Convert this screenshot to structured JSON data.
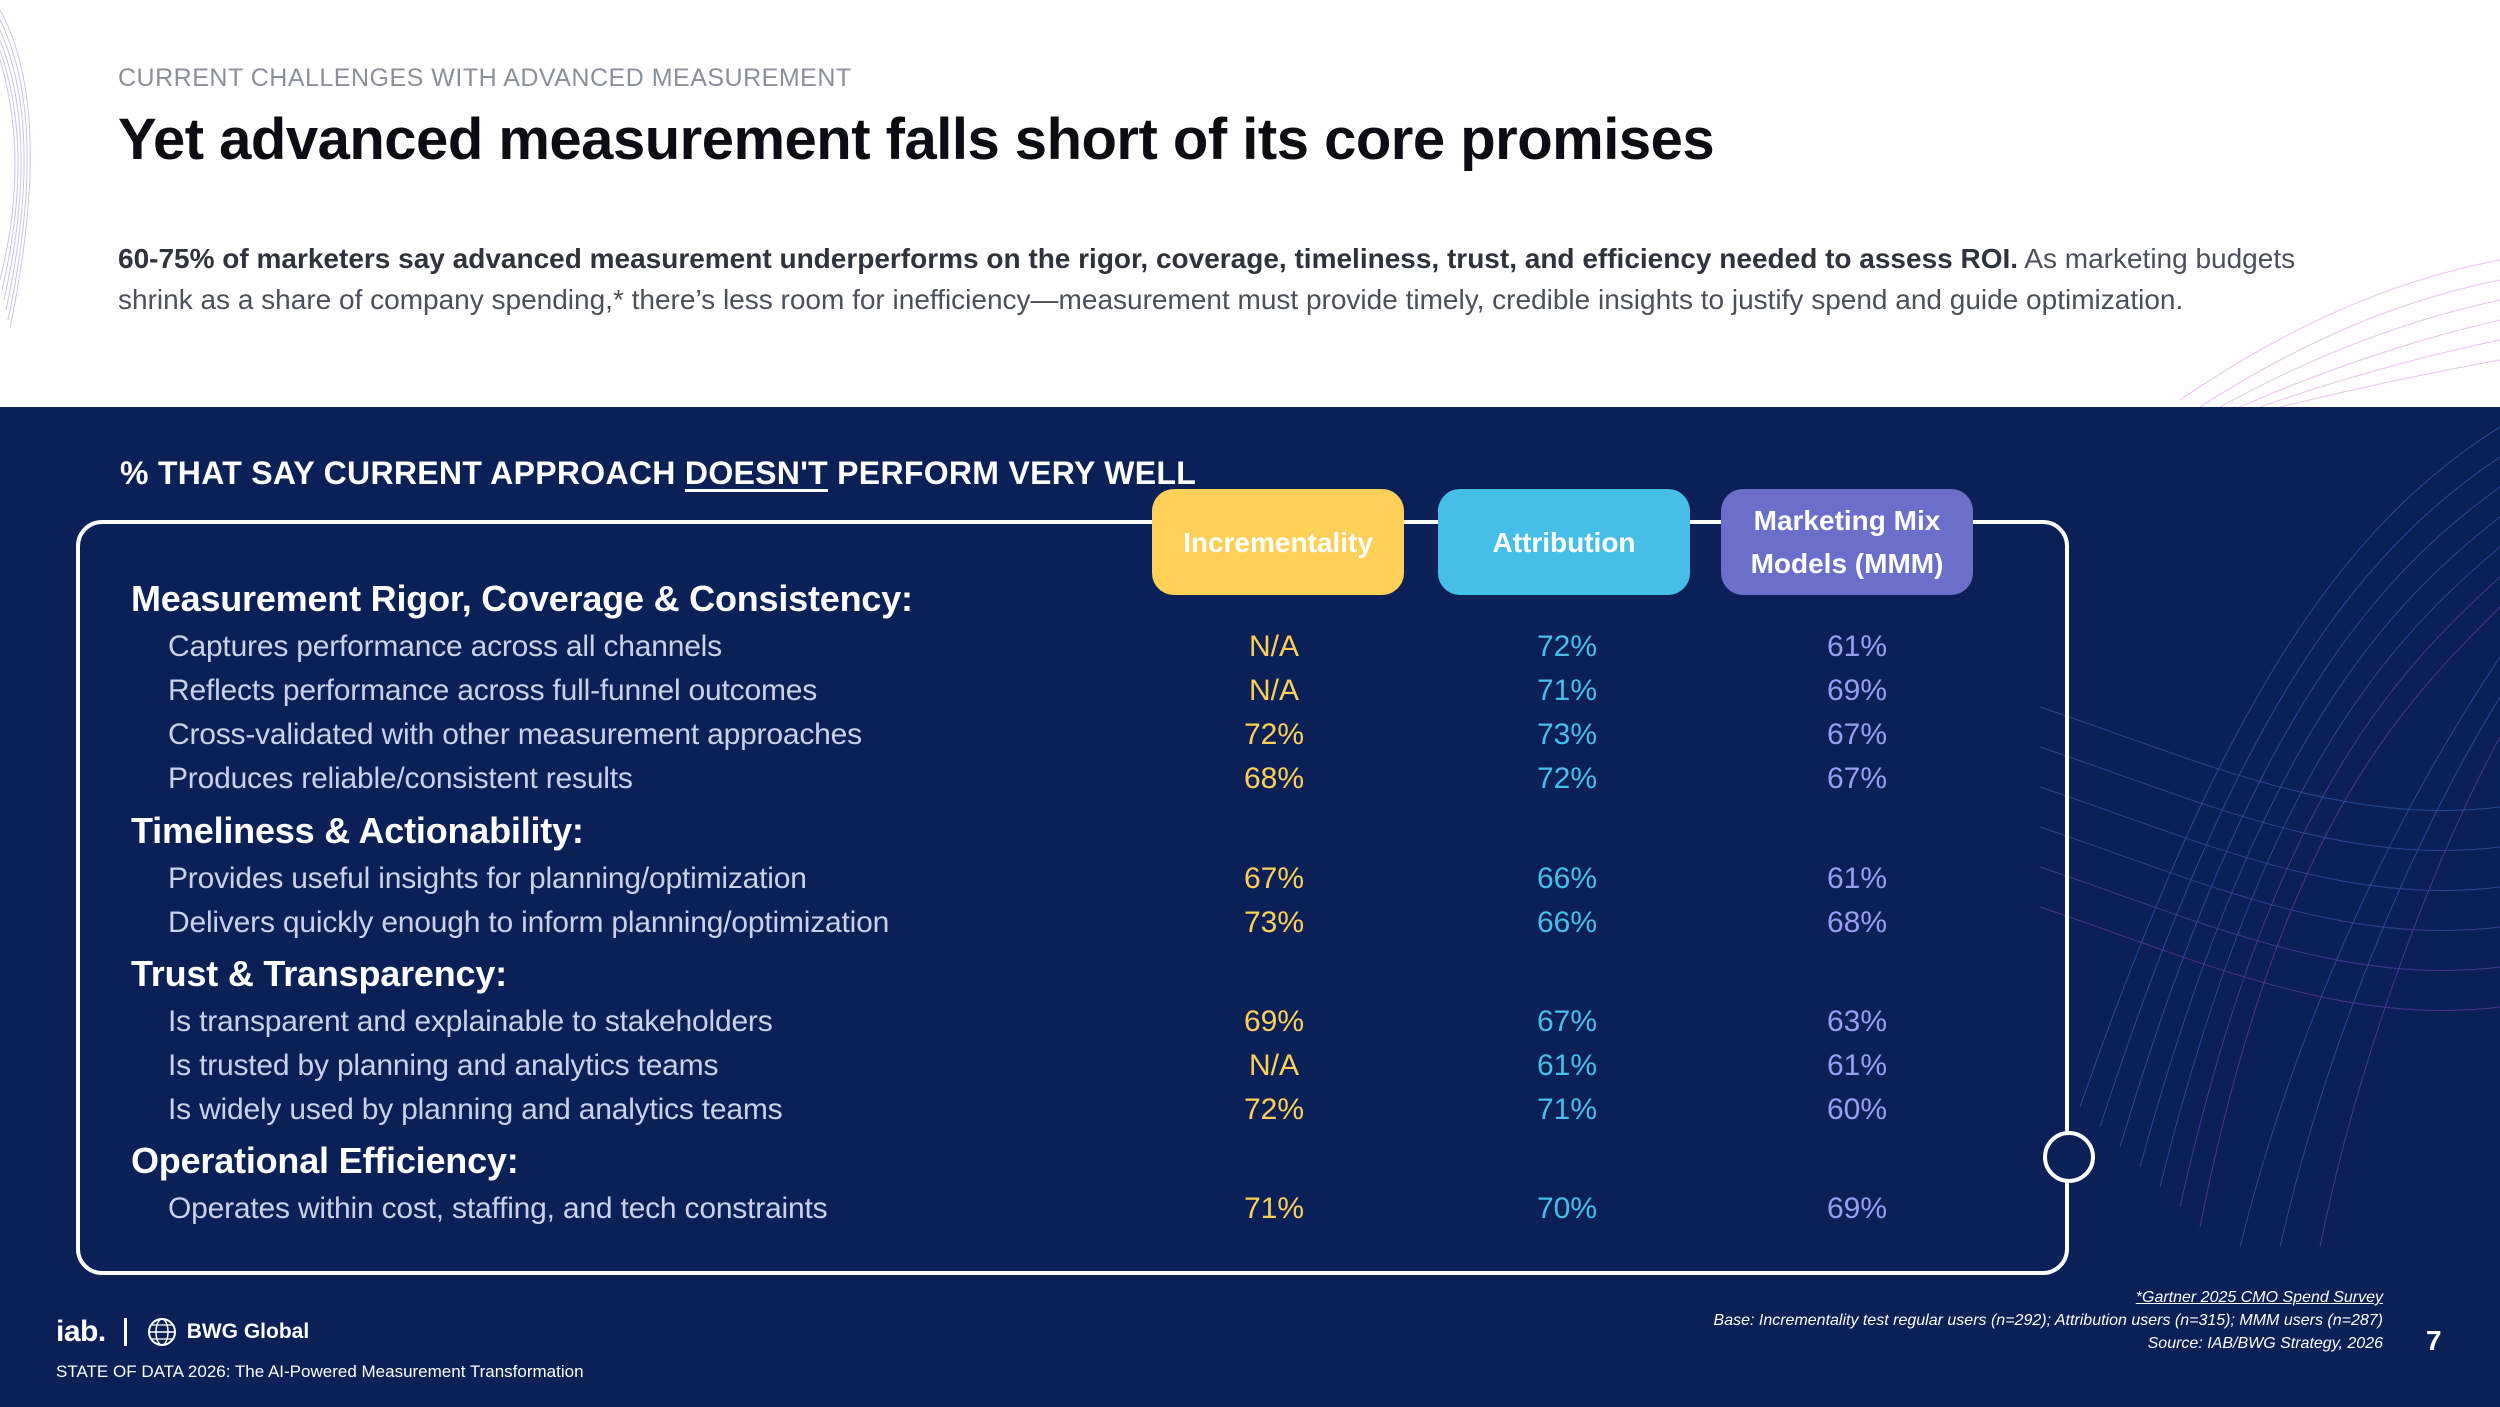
{
  "header": {
    "eyebrow": "CURRENT CHALLENGES WITH ADVANCED MEASUREMENT",
    "title": "Yet advanced measurement falls short of its core promises",
    "lede_bold": "60-75% of marketers say advanced measurement underperforms on the rigor, coverage, timeliness, trust, and efficiency needed to assess ROI.",
    "lede_rest": " As marketing budgets shrink as a share of company spending,* there’s less room for inefficiency—measurement must provide timely, credible insights to justify spend and guide optimization."
  },
  "section": {
    "title_before": "% THAT SAY CURRENT APPROACH ",
    "title_underlined": "DOESN'T",
    "title_after": " PERFORM VERY WELL"
  },
  "chart_data": {
    "type": "table",
    "columns": [
      {
        "key": "inc",
        "label": "Incrementality",
        "color": "#fdd058"
      },
      {
        "key": "att",
        "label": "Attribution",
        "color": "#46bfe8"
      },
      {
        "key": "mmm",
        "label": "Marketing Mix Models (MMM)",
        "color": "#6b6fc9"
      }
    ],
    "groups": [
      {
        "name": "Measurement Rigor, Coverage & Consistency:",
        "rows": [
          {
            "label": "Captures performance across all channels",
            "inc": "N/A",
            "att": "72%",
            "mmm": "61%"
          },
          {
            "label": "Reflects performance across full-funnel outcomes",
            "inc": "N/A",
            "att": "71%",
            "mmm": "69%"
          },
          {
            "label": "Cross-validated with other measurement approaches",
            "inc": "72%",
            "att": "73%",
            "mmm": "67%"
          },
          {
            "label": "Produces reliable/consistent results",
            "inc": "68%",
            "att": "72%",
            "mmm": "67%"
          }
        ]
      },
      {
        "name": "Timeliness & Actionability:",
        "rows": [
          {
            "label": "Provides useful insights for planning/optimization",
            "inc": "67%",
            "att": "66%",
            "mmm": "61%"
          },
          {
            "label": "Delivers quickly enough to inform planning/optimization",
            "inc": "73%",
            "att": "66%",
            "mmm": "68%"
          }
        ]
      },
      {
        "name": "Trust & Transparency:",
        "rows": [
          {
            "label": "Is transparent and explainable to stakeholders",
            "inc": "69%",
            "att": "67%",
            "mmm": "63%"
          },
          {
            "label": "Is trusted by planning and analytics teams",
            "inc": "N/A",
            "att": "61%",
            "mmm": "61%"
          },
          {
            "label": "Is widely used by planning and analytics teams",
            "inc": "72%",
            "att": "71%",
            "mmm": "60%"
          }
        ]
      },
      {
        "name": "Operational Efficiency:",
        "rows": [
          {
            "label": "Operates within cost, staffing, and tech constraints",
            "inc": "71%",
            "att": "70%",
            "mmm": "69%"
          }
        ]
      }
    ]
  },
  "footer": {
    "logo_iab": "iab.",
    "logo_bwg": "BWG Global",
    "report": "STATE OF DATA 2026: The AI-Powered Measurement Transformation",
    "note_gartner": "*Gartner 2025 CMO Spend Survey",
    "note_base": "Base: Incrementality test regular users (n=292); Attribution users (n=315); MMM users (n=287)",
    "note_source": "Source: IAB/BWG Strategy, 2026",
    "page_number": "7"
  }
}
